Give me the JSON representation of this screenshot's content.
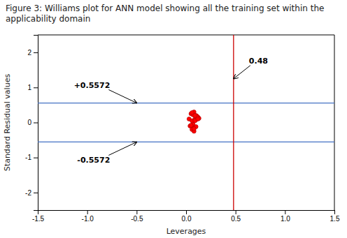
{
  "chart_data": {
    "type": "scatter",
    "title": "Figure 3: Williams plot for ANN model showing all the training set within the applicability domain",
    "x_label": "Leverages",
    "y_label": "Standard Residual values",
    "x": [
      0.05,
      0.08,
      0.03,
      0.1,
      0.12,
      0.07,
      0.06,
      0.09,
      0.04,
      0.11,
      0.08,
      0.1,
      0.06,
      0.13,
      0.07,
      0.05,
      0.09,
      0.08,
      0.11,
      0.1,
      0.06,
      0.12,
      0.08,
      0.09
    ],
    "values": [
      0.25,
      0.3,
      0.1,
      0.2,
      0.15,
      -0.05,
      0.05,
      0.1,
      -0.1,
      0.18,
      -0.15,
      0.08,
      -0.2,
      0.12,
      0.22,
      -0.08,
      0.05,
      -0.25,
      0.15,
      -0.12,
      0.28,
      0.1,
      -0.18,
      0.2
    ],
    "color": "#ff0000",
    "marker": "circle",
    "xlim": [
      -1.5,
      1.5
    ],
    "ylim": [
      -2.5,
      2.5
    ],
    "xticks": [
      -1.5,
      {
        "value": -1,
        "label": "-1.0"
      },
      -0.5,
      {
        "value": 0,
        "label": "0.0"
      },
      0.5,
      {
        "value": 1,
        "label": "1.0"
      },
      1.5
    ],
    "yticks": [
      -2,
      -1,
      0,
      1,
      2
    ],
    "grid": false,
    "reference_lines": [
      {
        "axis": "y",
        "value": 0.5572,
        "color": "#4472c4"
      },
      {
        "axis": "y",
        "value": -0.5572,
        "color": "#4472c4"
      },
      {
        "axis": "x",
        "value": 0.48,
        "color": "#cc0000"
      }
    ],
    "annotations": [
      {
        "text": "0.48",
        "x": 0.48,
        "y": 1.25
      },
      {
        "text": "+0.5572",
        "x": -0.5,
        "y": 0.5572
      },
      {
        "text": "-0.5572",
        "x": -0.5,
        "y": -0.5572
      }
    ]
  }
}
